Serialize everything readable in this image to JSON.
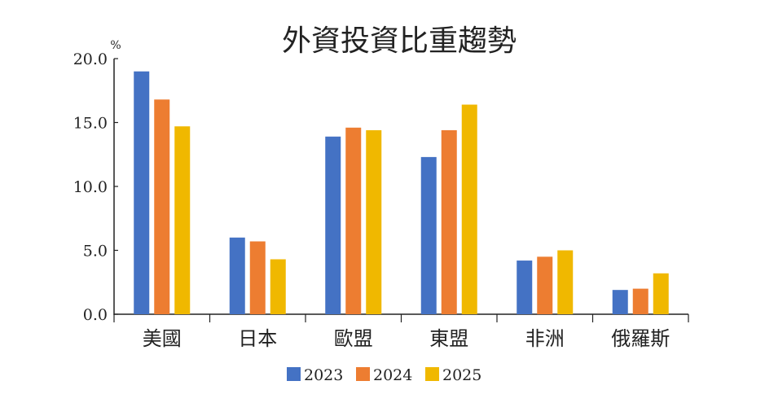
{
  "chart_data": {
    "type": "bar",
    "title": "外資投資比重趨勢",
    "ylabel": "%",
    "xlabel": "",
    "ylim": [
      0,
      20
    ],
    "yticks": [
      "0.0",
      "5.0",
      "10.0",
      "15.0",
      "20.0"
    ],
    "grid": false,
    "legend": "bottom",
    "categories": [
      "美國",
      "日本",
      "歐盟",
      "東盟",
      "非洲",
      "俄羅斯"
    ],
    "series": [
      {
        "name": "2023",
        "color": "#4472C4",
        "values": [
          19.0,
          6.0,
          13.9,
          12.3,
          4.2,
          1.9
        ]
      },
      {
        "name": "2024",
        "color": "#ED7D31",
        "values": [
          16.8,
          5.7,
          14.6,
          14.4,
          4.5,
          2.0
        ]
      },
      {
        "name": "2025",
        "color": "#F0B800",
        "values": [
          14.7,
          4.3,
          14.4,
          16.4,
          5.0,
          3.2
        ]
      }
    ]
  }
}
